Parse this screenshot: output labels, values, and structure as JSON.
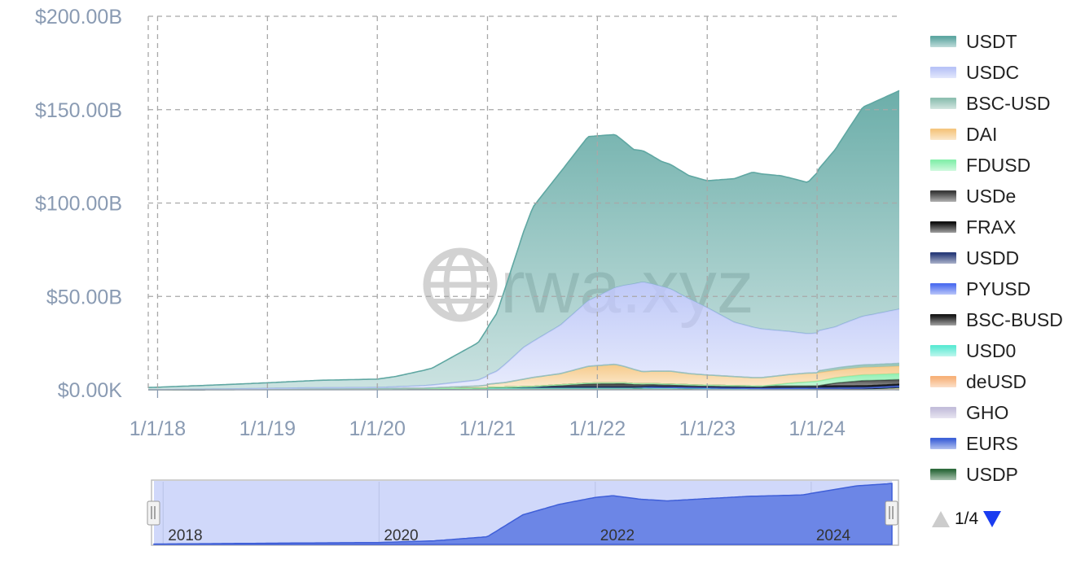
{
  "chart_data": {
    "type": "area",
    "stacked": true,
    "y_axis": {
      "ticks": [
        "$0.00K",
        "$50.00B",
        "$100.00B",
        "$150.00B",
        "$200.00B"
      ],
      "min": 0,
      "max": 200,
      "unit": "billions USD"
    },
    "x_axis": {
      "ticks": [
        "1/1/18",
        "1/1/19",
        "1/1/20",
        "1/1/21",
        "1/1/22",
        "1/1/23",
        "1/1/24"
      ],
      "range": [
        "2017-12-01",
        "2024-09-30"
      ]
    },
    "grid": true,
    "legend_position": "right",
    "watermark": "rwa.xyz",
    "series": [
      {
        "name": "USDT",
        "color": "#5fa7a2",
        "points": [
          [
            "2017-12-01",
            1.2
          ],
          [
            "2018-06-01",
            2.0
          ],
          [
            "2019-01-01",
            3.0
          ],
          [
            "2019-07-01",
            4.0
          ],
          [
            "2020-01-01",
            4.5
          ],
          [
            "2020-03-01",
            5.5
          ],
          [
            "2020-07-01",
            9.0
          ],
          [
            "2020-12-01",
            20.0
          ],
          [
            "2021-02-01",
            31.0
          ],
          [
            "2021-05-01",
            62.0
          ],
          [
            "2021-06-01",
            72.0
          ],
          [
            "2021-09-01",
            82.0
          ],
          [
            "2021-12-01",
            88.0
          ],
          [
            "2022-03-01",
            82.0
          ],
          [
            "2022-05-01",
            72.0
          ],
          [
            "2022-08-01",
            67.0
          ],
          [
            "2022-11-01",
            66.0
          ],
          [
            "2023-01-01",
            68.0
          ],
          [
            "2023-06-01",
            83.0
          ],
          [
            "2023-09-01",
            83.0
          ],
          [
            "2023-12-01",
            81.0
          ],
          [
            "2024-03-01",
            95.0
          ],
          [
            "2024-06-01",
            112.0
          ],
          [
            "2024-09-30",
            117.0
          ]
        ]
      },
      {
        "name": "USDC",
        "color": "#b9c4f7",
        "points": [
          [
            "2017-12-01",
            0.0
          ],
          [
            "2018-10-01",
            0.3
          ],
          [
            "2019-06-01",
            0.6
          ],
          [
            "2020-01-01",
            0.5
          ],
          [
            "2020-07-01",
            1.5
          ],
          [
            "2020-12-01",
            3.2
          ],
          [
            "2021-02-01",
            6.5
          ],
          [
            "2021-05-01",
            17.0
          ],
          [
            "2021-09-01",
            26.0
          ],
          [
            "2021-12-01",
            35.0
          ],
          [
            "2022-03-01",
            41.0
          ],
          [
            "2022-06-01",
            48.0
          ],
          [
            "2022-09-01",
            44.0
          ],
          [
            "2022-11-01",
            40.0
          ],
          [
            "2023-01-01",
            36.0
          ],
          [
            "2023-04-01",
            29.0
          ],
          [
            "2023-09-01",
            24.0
          ],
          [
            "2023-12-01",
            21.0
          ],
          [
            "2024-03-01",
            22.0
          ],
          [
            "2024-06-01",
            26.0
          ],
          [
            "2024-09-30",
            29.0
          ]
        ]
      },
      {
        "name": "BSC-USD",
        "color": "#8fc0b2",
        "points": [
          [
            "2017-12-01",
            0
          ],
          [
            "2023-12-31",
            0
          ],
          [
            "2024-01-01",
            1.0
          ],
          [
            "2024-04-01",
            1.3
          ],
          [
            "2024-09-30",
            1.5
          ]
        ]
      },
      {
        "name": "DAI",
        "color": "#f5c680",
        "points": [
          [
            "2017-12-01",
            0
          ],
          [
            "2020-06-01",
            0.2
          ],
          [
            "2020-12-01",
            1.2
          ],
          [
            "2021-03-01",
            2.5
          ],
          [
            "2021-06-01",
            4.8
          ],
          [
            "2021-09-01",
            6.0
          ],
          [
            "2021-12-01",
            9.0
          ],
          [
            "2022-03-01",
            10.0
          ],
          [
            "2022-06-01",
            6.5
          ],
          [
            "2022-09-01",
            7.0
          ],
          [
            "2022-11-01",
            6.0
          ],
          [
            "2023-01-01",
            5.5
          ],
          [
            "2023-06-01",
            4.5
          ],
          [
            "2023-12-01",
            4.8
          ],
          [
            "2024-03-01",
            4.0
          ],
          [
            "2024-09-30",
            4.0
          ]
        ]
      },
      {
        "name": "FDUSD",
        "color": "#86efac",
        "points": [
          [
            "2017-12-01",
            0
          ],
          [
            "2023-07-01",
            0
          ],
          [
            "2023-10-01",
            1.5
          ],
          [
            "2024-01-01",
            2.5
          ],
          [
            "2024-04-01",
            3.0
          ],
          [
            "2024-09-30",
            3.2
          ]
        ]
      },
      {
        "name": "USDe",
        "color": "#3a3a3a",
        "points": [
          [
            "2017-12-01",
            0
          ],
          [
            "2023-12-31",
            0
          ],
          [
            "2024-03-01",
            1.5
          ],
          [
            "2024-06-01",
            2.8
          ],
          [
            "2024-09-30",
            2.5
          ]
        ]
      },
      {
        "name": "FRAX",
        "color": "#111111",
        "points": [
          [
            "2017-12-01",
            0
          ],
          [
            "2021-03-01",
            0
          ],
          [
            "2021-06-01",
            0.3
          ],
          [
            "2021-12-01",
            2.0
          ],
          [
            "2022-04-01",
            2.2
          ],
          [
            "2022-06-01",
            1.5
          ],
          [
            "2022-12-01",
            1.0
          ],
          [
            "2023-06-01",
            0.8
          ],
          [
            "2024-09-30",
            0.5
          ]
        ]
      },
      {
        "name": "USDD",
        "color": "#2b3d7a",
        "points": [
          [
            "2017-12-01",
            0
          ],
          [
            "2022-05-01",
            0
          ],
          [
            "2022-07-01",
            0.5
          ],
          [
            "2023-06-01",
            0.5
          ],
          [
            "2024-09-30",
            0.6
          ]
        ]
      },
      {
        "name": "PYUSD",
        "color": "#4f6ff0",
        "points": [
          [
            "2017-12-01",
            0
          ],
          [
            "2023-08-01",
            0
          ],
          [
            "2024-01-01",
            0.2
          ],
          [
            "2024-09-30",
            0.6
          ]
        ]
      },
      {
        "name": "BSC-BUSD",
        "color": "#1a1a1a",
        "points": [
          [
            "2017-12-01",
            0
          ],
          [
            "2020-12-31",
            0
          ],
          [
            "2021-01-01",
            0.5
          ],
          [
            "2022-01-01",
            0.6
          ],
          [
            "2023-01-01",
            0.3
          ],
          [
            "2024-09-30",
            0.1
          ]
        ]
      },
      {
        "name": "USD0",
        "color": "#5eead4",
        "points": [
          [
            "2017-12-01",
            0
          ],
          [
            "2024-06-01",
            0
          ],
          [
            "2024-09-30",
            0.5
          ]
        ]
      },
      {
        "name": "deUSD",
        "color": "#f7b27a",
        "points": [
          [
            "2017-12-01",
            0
          ],
          [
            "2024-07-01",
            0
          ],
          [
            "2024-09-30",
            0.3
          ]
        ]
      },
      {
        "name": "GHO",
        "color": "#c4bedb",
        "points": [
          [
            "2017-12-01",
            0
          ],
          [
            "2023-07-01",
            0
          ],
          [
            "2024-09-30",
            0.2
          ]
        ]
      },
      {
        "name": "EURS",
        "color": "#3f63d8",
        "points": [
          [
            "2017-12-01",
            0
          ],
          [
            "2018-08-01",
            0.05
          ],
          [
            "2024-09-30",
            0.1
          ]
        ]
      },
      {
        "name": "USDP",
        "color": "#2f6b3d",
        "points": [
          [
            "2017-12-01",
            0
          ],
          [
            "2018-09-01",
            0.1
          ],
          [
            "2021-06-01",
            0.9
          ],
          [
            "2022-06-01",
            0.9
          ],
          [
            "2023-06-01",
            0.4
          ],
          [
            "2024-09-30",
            0.1
          ]
        ]
      }
    ]
  },
  "navigator": {
    "labels": [
      "2018",
      "2020",
      "2022",
      "2024"
    ],
    "series": [
      [
        "2017-12-01",
        1.0
      ],
      [
        "2019-01-01",
        3.5
      ],
      [
        "2020-01-01",
        5.5
      ],
      [
        "2020-07-01",
        10.0
      ],
      [
        "2021-01-01",
        22.0
      ],
      [
        "2021-05-01",
        85.0
      ],
      [
        "2021-09-01",
        115.0
      ],
      [
        "2022-01-01",
        135.0
      ],
      [
        "2022-03-01",
        140.0
      ],
      [
        "2022-06-01",
        130.0
      ],
      [
        "2022-09-01",
        125.0
      ],
      [
        "2023-01-01",
        131.0
      ],
      [
        "2023-06-01",
        138.0
      ],
      [
        "2023-12-01",
        142.0
      ],
      [
        "2024-03-01",
        155.0
      ],
      [
        "2024-06-01",
        168.0
      ],
      [
        "2024-09-30",
        175.0
      ]
    ]
  },
  "legend_pager": {
    "text": "1/4"
  }
}
